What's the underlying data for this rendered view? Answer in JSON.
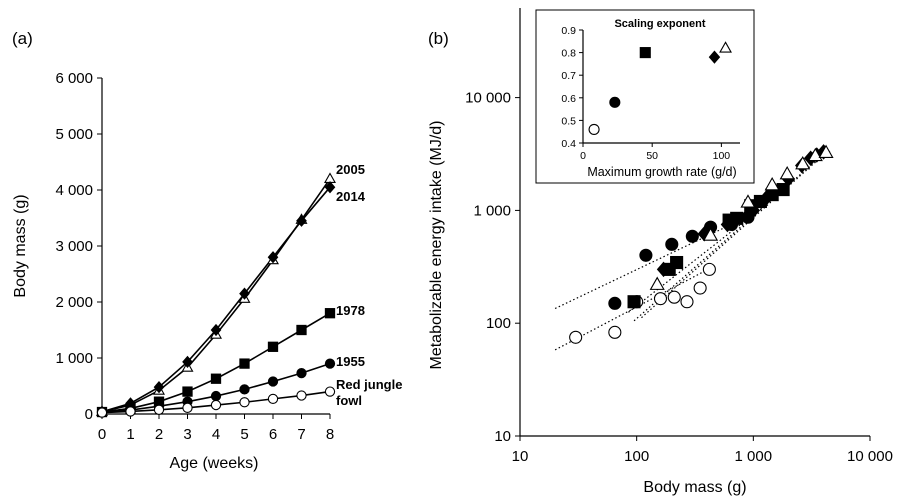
{
  "chart_data": [
    {
      "panel": "(a)",
      "type": "line",
      "xlabel": "Age (weeks)",
      "ylabel": "Body mass (g)",
      "xlim": [
        0,
        8
      ],
      "ylim": [
        0,
        6000
      ],
      "x_ticks": [
        "0",
        "1",
        "2",
        "3",
        "4",
        "5",
        "6",
        "7",
        "8"
      ],
      "y_ticks": [
        "0",
        "1 000",
        "2 000",
        "3 000",
        "4 000",
        "5 000",
        "6 000"
      ],
      "x": [
        0,
        1,
        2,
        3,
        4,
        5,
        6,
        7,
        8
      ],
      "series": [
        {
          "name": "2005",
          "marker": "triangle-open",
          "values": [
            40,
            160,
            420,
            830,
            1420,
            2060,
            2750,
            3470,
            4200
          ]
        },
        {
          "name": "2014",
          "marker": "diamond-filled",
          "values": [
            40,
            190,
            480,
            930,
            1500,
            2150,
            2800,
            3450,
            4050
          ]
        },
        {
          "name": "1978",
          "marker": "square-filled",
          "values": [
            35,
            100,
            220,
            400,
            630,
            900,
            1200,
            1500,
            1800
          ]
        },
        {
          "name": "1955",
          "marker": "circle-filled",
          "values": [
            30,
            70,
            140,
            220,
            320,
            440,
            580,
            730,
            900
          ]
        },
        {
          "name": "Red jungle fowl",
          "marker": "circle-open",
          "values": [
            25,
            45,
            75,
            110,
            160,
            210,
            270,
            330,
            400
          ]
        }
      ],
      "series_labels": [
        {
          "text": "2005",
          "series": "2005"
        },
        {
          "text": "2014",
          "series": "2014"
        },
        {
          "text": "1978",
          "series": "1978"
        },
        {
          "text": "1955",
          "series": "1955"
        },
        {
          "text": "Red jungle",
          "series": "Red jungle fowl"
        },
        {
          "text": "fowl",
          "series": "Red jungle fowl"
        }
      ]
    },
    {
      "panel": "(b)",
      "type": "scatter",
      "scale": "log-log",
      "xlabel": "Body mass (g)",
      "ylabel": "Metabolizable energy intake (MJ/d)",
      "xlim": [
        10,
        10000
      ],
      "ylim": [
        10,
        50000
      ],
      "x_ticks": [
        {
          "value": 10,
          "label": "10"
        },
        {
          "value": 100,
          "label": "100"
        },
        {
          "value": 1000,
          "label": "1 000"
        },
        {
          "value": 10000,
          "label": "10 000"
        }
      ],
      "y_ticks": [
        {
          "value": 10,
          "label": "10"
        },
        {
          "value": 100,
          "label": "100"
        },
        {
          "value": 1000,
          "label": "1 000"
        },
        {
          "value": 10000,
          "label": "10 000"
        }
      ],
      "series": [
        {
          "marker": "circle-open",
          "points": [
            [
              30,
              75
            ],
            [
              65,
              83
            ],
            [
              100,
              155
            ],
            [
              160,
              165
            ],
            [
              210,
              170
            ],
            [
              270,
              155
            ],
            [
              350,
              205
            ],
            [
              420,
              300
            ]
          ]
        },
        {
          "marker": "circle-filled",
          "points": [
            [
              65,
              150
            ],
            [
              120,
              400
            ],
            [
              200,
              500
            ],
            [
              300,
              590
            ],
            [
              430,
              710
            ],
            [
              650,
              750
            ],
            [
              900,
              870
            ]
          ]
        },
        {
          "marker": "square-filled",
          "points": [
            [
              95,
              155
            ],
            [
              190,
              300
            ],
            [
              220,
              345
            ],
            [
              620,
              820
            ],
            [
              720,
              850
            ],
            [
              950,
              1100
            ],
            [
              1150,
              1200
            ],
            [
              1450,
              1380
            ],
            [
              1800,
              1530
            ]
          ]
        },
        {
          "marker": "diamond-filled",
          "points": [
            [
              170,
              300
            ],
            [
              380,
              620
            ],
            [
              600,
              750
            ],
            [
              1000,
              1000
            ],
            [
              1300,
              1300
            ],
            [
              1500,
              1480
            ],
            [
              2000,
              1900
            ],
            [
              2600,
              2500
            ],
            [
              3100,
              2900
            ],
            [
              3500,
              3100
            ],
            [
              4000,
              3300
            ]
          ]
        },
        {
          "marker": "triangle-open",
          "points": [
            [
              150,
              220
            ],
            [
              430,
              600
            ],
            [
              900,
              1180
            ],
            [
              1450,
              1680
            ],
            [
              1950,
              2100
            ],
            [
              2650,
              2580
            ],
            [
              3400,
              3050
            ],
            [
              4200,
              3250
            ]
          ]
        }
      ],
      "fit_lines": [
        {
          "from": [
            20,
            58
          ],
          "to": [
            460,
            320
          ]
        },
        {
          "from": [
            20,
            135
          ],
          "to": [
            1000,
            930
          ]
        },
        {
          "from": [
            85,
            125
          ],
          "to": [
            1900,
            1550
          ]
        },
        {
          "from": [
            110,
            112
          ],
          "to": [
            4200,
            3250
          ]
        },
        {
          "from": [
            95,
            105
          ],
          "to": [
            4200,
            3300
          ]
        }
      ],
      "inset": {
        "type": "scatter",
        "title": "Scaling exponent",
        "xlabel": "Maximum growth rate (g/d)",
        "xlim": [
          0,
          110
        ],
        "ylim": [
          0.4,
          0.9
        ],
        "x_ticks": [
          "0",
          "50",
          "100"
        ],
        "y_ticks": [
          "0.4",
          "0.5",
          "0.6",
          "0.7",
          "0.8",
          "0.9"
        ],
        "points": [
          {
            "x": 8,
            "y": 0.46,
            "marker": "circle-open"
          },
          {
            "x": 23,
            "y": 0.58,
            "marker": "circle-filled"
          },
          {
            "x": 45,
            "y": 0.8,
            "marker": "square-filled"
          },
          {
            "x": 95,
            "y": 0.78,
            "marker": "diamond-filled"
          },
          {
            "x": 103,
            "y": 0.82,
            "marker": "triangle-open"
          }
        ]
      }
    }
  ]
}
